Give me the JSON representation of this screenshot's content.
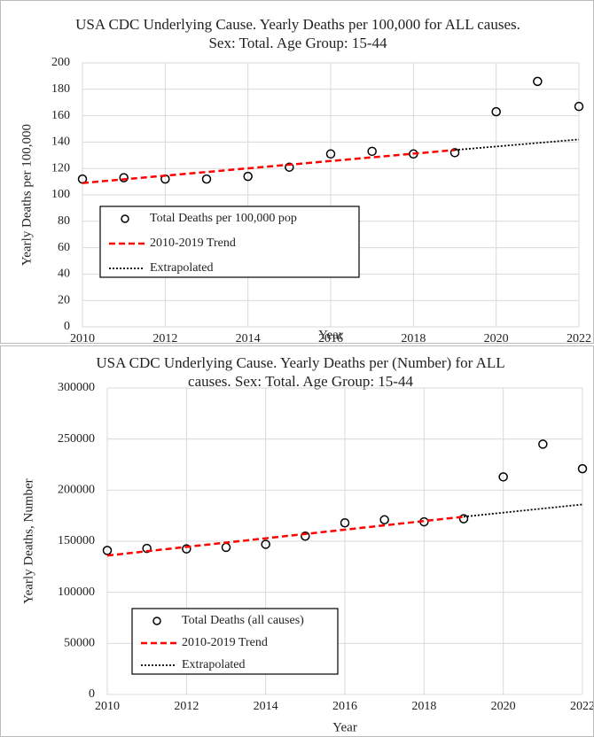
{
  "chart_data": [
    {
      "type": "scatter",
      "title": "USA CDC Underlying Cause. Yearly Deaths per 100,000 for ALL causes. Sex: Total. Age Group: 15-44",
      "x_label": "Year",
      "y_label": "Yearly Deaths per 100,000",
      "xlim": [
        2010,
        2022
      ],
      "xticks": [
        2010,
        2012,
        2014,
        2016,
        2018,
        2020,
        2022
      ],
      "ylim": [
        0,
        200
      ],
      "yticks": [
        0,
        20,
        40,
        60,
        80,
        100,
        120,
        140,
        160,
        180,
        200
      ],
      "grid": true,
      "series": [
        {
          "name": "Total Deaths per 100,000 pop",
          "color": "#000000",
          "x": [
            2010,
            2011,
            2012,
            2013,
            2014,
            2015,
            2016,
            2017,
            2018,
            2019,
            2020,
            2021,
            2022
          ],
          "values": [
            112,
            113,
            112,
            112,
            114,
            121,
            131,
            133,
            131,
            132,
            163,
            186,
            167
          ]
        },
        {
          "name": "2010-2019 Trend",
          "color": "#ff0000",
          "x": [
            2010,
            2019
          ],
          "values": [
            109,
            134
          ]
        },
        {
          "name": "Extrapolated",
          "color": "#000000",
          "x": [
            2019,
            2022
          ],
          "values": [
            134,
            142
          ]
        }
      ]
    },
    {
      "type": "scatter",
      "title": "USA CDC Underlying Cause. Yearly Deaths per (Number) for ALL causes. Sex: Total. Age Group: 15-44",
      "x_label": "Year",
      "y_label": "Yearly Deaths, Number",
      "xlim": [
        2010,
        2022
      ],
      "xticks": [
        2010,
        2012,
        2014,
        2016,
        2018,
        2020,
        2022
      ],
      "ylim": [
        0,
        300000
      ],
      "yticks": [
        0,
        50000,
        100000,
        150000,
        200000,
        250000,
        300000
      ],
      "grid": true,
      "series": [
        {
          "name": "Total Deaths (all causes)",
          "color": "#000000",
          "x": [
            2010,
            2011,
            2012,
            2013,
            2014,
            2015,
            2016,
            2017,
            2018,
            2019,
            2020,
            2021,
            2022
          ],
          "values": [
            141000,
            143000,
            142500,
            144000,
            147000,
            155000,
            168000,
            171000,
            169000,
            172000,
            213000,
            245000,
            221000
          ]
        },
        {
          "name": "2010-2019 Trend",
          "color": "#ff0000",
          "x": [
            2010,
            2019
          ],
          "values": [
            136000,
            174000
          ]
        },
        {
          "name": "Extrapolated",
          "color": "#000000",
          "x": [
            2019,
            2022
          ],
          "values": [
            174000,
            186000
          ]
        }
      ]
    }
  ]
}
